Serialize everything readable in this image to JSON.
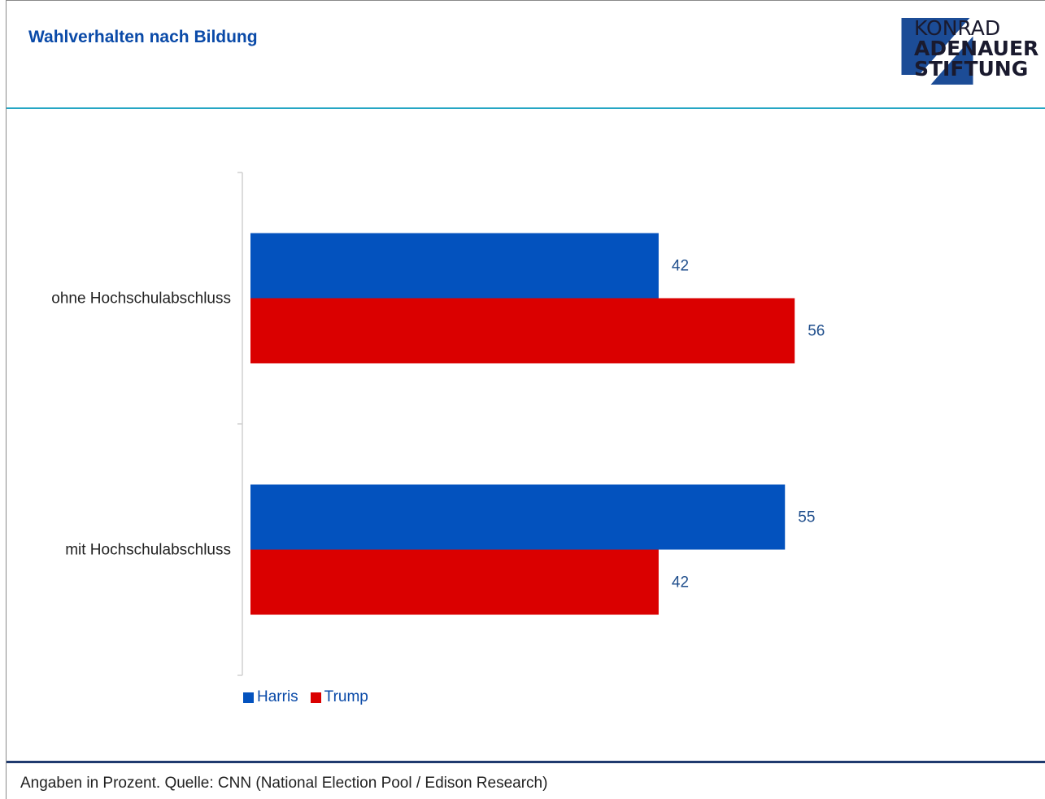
{
  "header": {
    "title": "Wahlverhalten nach Bildung",
    "logo": {
      "line1": "KONRAD",
      "line2": "ADENAUER",
      "line3": "STIFTUNG",
      "mark_color": "#1c4c96"
    }
  },
  "chart_data": {
    "type": "bar",
    "orientation": "horizontal",
    "categories": [
      "ohne Hochschulabschluss",
      "mit Hochschulabschluss"
    ],
    "series": [
      {
        "name": "Harris",
        "values": [
          42,
          55
        ],
        "color": "#0352be"
      },
      {
        "name": "Trump",
        "values": [
          56,
          42
        ],
        "color": "#da0000"
      }
    ],
    "xlim": [
      0,
      100
    ],
    "grid": false,
    "legend": "bottom-left"
  },
  "footer": {
    "source": "Angaben in Prozent. Quelle: CNN (National Election Pool / Edison Research)"
  }
}
